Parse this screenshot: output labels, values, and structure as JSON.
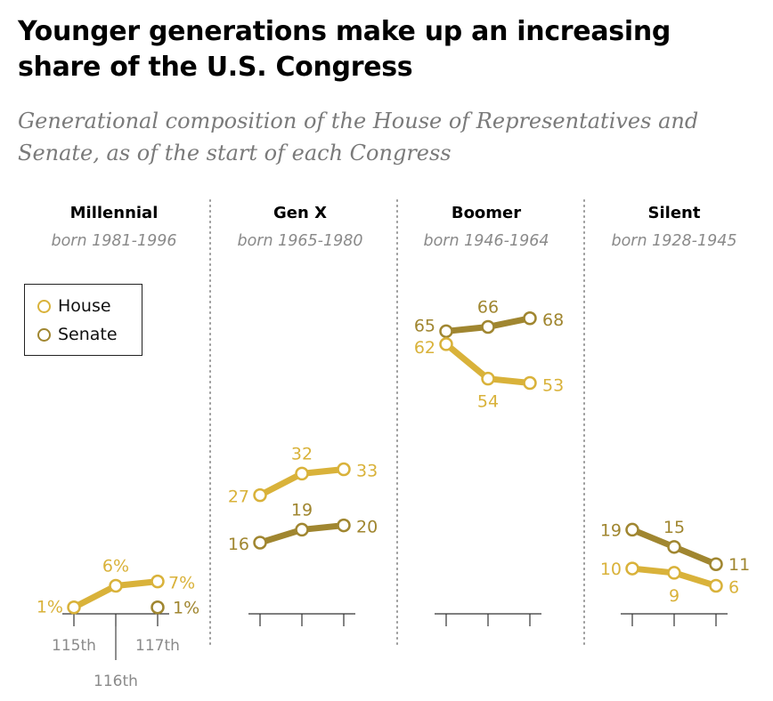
{
  "header": {
    "title": "Younger generations make up an increasing share of the U.S. Congress",
    "subtitle": "Generational composition of the House of Representatives and Senate, as of the start of each Congress"
  },
  "colors": {
    "house": "#d9b23a",
    "senate": "#a08630",
    "divider": "#999999",
    "axis": "#333333"
  },
  "legend": {
    "house_label": "House",
    "senate_label": "Senate"
  },
  "chart_data": {
    "type": "line",
    "y_unit": "%",
    "ylim": [
      0,
      70
    ],
    "x": [
      "115th",
      "116th",
      "117th"
    ],
    "panels": [
      {
        "title": "Millennial",
        "subtitle": "born 1981-1996",
        "series": [
          {
            "name": "House",
            "values": [
              1,
              6,
              7
            ],
            "labels": [
              "1%",
              "6%",
              "7%"
            ]
          },
          {
            "name": "Senate",
            "values": [
              null,
              null,
              1
            ],
            "labels": [
              "",
              "",
              "1%"
            ]
          }
        ]
      },
      {
        "title": "Gen X",
        "subtitle": "born 1965-1980",
        "series": [
          {
            "name": "House",
            "values": [
              27,
              32,
              33
            ],
            "labels": [
              "27",
              "32",
              "33"
            ]
          },
          {
            "name": "Senate",
            "values": [
              16,
              19,
              20
            ],
            "labels": [
              "16",
              "19",
              "20"
            ]
          }
        ]
      },
      {
        "title": "Boomer",
        "subtitle": "born 1946-1964",
        "series": [
          {
            "name": "House",
            "values": [
              62,
              54,
              53
            ],
            "labels": [
              "62",
              "54",
              "53"
            ]
          },
          {
            "name": "Senate",
            "values": [
              65,
              66,
              68
            ],
            "labels": [
              "65",
              "66",
              "68"
            ]
          }
        ]
      },
      {
        "title": "Silent",
        "subtitle": "born 1928-1945",
        "series": [
          {
            "name": "House",
            "values": [
              10,
              9,
              6
            ],
            "labels": [
              "10",
              "9",
              "6"
            ]
          },
          {
            "name": "Senate",
            "values": [
              19,
              15,
              11
            ],
            "labels": [
              "19",
              "15",
              "11"
            ]
          }
        ]
      }
    ]
  }
}
